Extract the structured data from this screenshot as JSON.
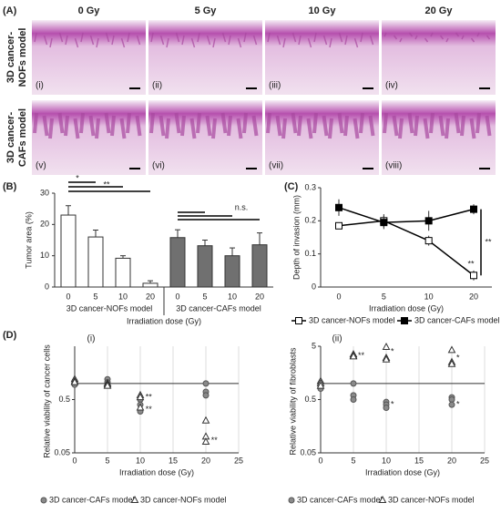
{
  "panel_a": {
    "label": "(A)",
    "columns": [
      "0 Gy",
      "5 Gy",
      "10 Gy",
      "20 Gy"
    ],
    "rows": [
      [
        "3D cancer-",
        "NOFs model"
      ],
      [
        "3D cancer-",
        "CAFs model"
      ]
    ],
    "image_labels": [
      "(i)",
      "(ii)",
      "(iii)",
      "(iv)",
      "(v)",
      "(vi)",
      "(vii)",
      "(viii)"
    ]
  },
  "panel_d_label": "(D)",
  "chart_data": [
    {
      "type": "bar",
      "panel": "(B)",
      "y_label": "Tumor area (%)",
      "x_label": "Irradiation dose (Gy)",
      "categories": [
        "0",
        "5",
        "10",
        "20"
      ],
      "series": [
        {
          "name": "3D cancer-NOFs model",
          "color": "#ffffff",
          "values": [
            23,
            16,
            9.2,
            1.2
          ],
          "errors": [
            3,
            2.2,
            0.8,
            0.8
          ]
        },
        {
          "name": "3D cancer-CAFs model",
          "color": "#707070",
          "values": [
            15.8,
            13.2,
            10,
            13.5
          ],
          "errors": [
            2.5,
            1.8,
            2.5,
            3.8
          ]
        }
      ],
      "ylim": [
        0,
        30
      ],
      "yticks": [
        0,
        10,
        20,
        30
      ],
      "annotations": [
        "*",
        "**",
        "n.s."
      ]
    },
    {
      "type": "line",
      "panel": "(C)",
      "y_label": "Depth of invasion (mm)",
      "x_label": "Irradiation dose (Gy)",
      "categories": [
        "0",
        "5",
        "10",
        "20"
      ],
      "series": [
        {
          "name": "3D cancer-NOFs model",
          "color": "#ffffff",
          "values": [
            0.185,
            0.2,
            0.14,
            0.035
          ],
          "errors": [
            0.01,
            0.02,
            0.015,
            0.015
          ]
        },
        {
          "name": "3D cancer-CAFs model",
          "color": "#000000",
          "values": [
            0.24,
            0.195,
            0.2,
            0.235
          ],
          "errors": [
            0.025,
            0.02,
            0.03,
            0.015
          ]
        }
      ],
      "ylim": [
        0,
        0.3
      ],
      "yticks": [
        0,
        0.1,
        0.2,
        0.3
      ],
      "annotations": [
        "**",
        "**"
      ]
    },
    {
      "type": "scatter",
      "title": "(i)",
      "y_label": "Relative viability of cancer cells",
      "x_label": "Irradiation dose (Gy)",
      "log_y": true,
      "grid": true,
      "reference_line": 1,
      "series": [
        {
          "name": "3D cancer-CAFs model",
          "marker": "circle",
          "color": "#8a8a8a",
          "x": [
            0,
            0,
            0,
            5,
            5,
            5,
            10,
            10,
            10,
            20,
            20,
            20
          ],
          "values": [
            1.0,
            1.1,
            0.95,
            1.2,
            1.05,
            0.95,
            0.5,
            0.4,
            0.3,
            1.0,
            0.7,
            0.6
          ]
        },
        {
          "name": "3D cancer-NOFs model",
          "marker": "triangle",
          "color": "#ffffff",
          "x": [
            0,
            0,
            0,
            5,
            5,
            5,
            10,
            10,
            10,
            20,
            20,
            20
          ],
          "values": [
            1.2,
            1.1,
            1.05,
            1.0,
            0.95,
            0.9,
            0.6,
            0.55,
            0.35,
            0.2,
            0.1,
            0.08
          ]
        }
      ],
      "xlim": [
        0,
        25
      ],
      "xticks": [
        0,
        5,
        10,
        15,
        20,
        25
      ],
      "ylim": [
        0.05,
        5
      ],
      "yticks": [
        0.05,
        0.5
      ],
      "annotations": [
        "**",
        "**",
        "**"
      ]
    },
    {
      "type": "scatter",
      "title": "(ii)",
      "y_label": "Relative viability of fibroblasts",
      "x_label": "Irradiation dose (Gy)",
      "log_y": true,
      "grid": true,
      "reference_line": 1,
      "series": [
        {
          "name": "3D cancer-CAFs model",
          "marker": "circle",
          "color": "#8a8a8a",
          "x": [
            0,
            0,
            0,
            5,
            5,
            5,
            10,
            10,
            10,
            20,
            20,
            20
          ],
          "values": [
            1.0,
            0.9,
            0.8,
            1.0,
            0.6,
            0.5,
            0.45,
            0.4,
            0.35,
            0.55,
            0.5,
            0.4
          ]
        },
        {
          "name": "3D cancer-NOFs model",
          "marker": "triangle",
          "color": "#ffffff",
          "x": [
            0,
            0,
            0,
            5,
            5,
            5,
            10,
            10,
            10,
            20,
            20,
            20
          ],
          "values": [
            1.1,
            1.0,
            0.9,
            3.5,
            3.3,
            3.2,
            4.8,
            3.0,
            2.8,
            4.2,
            2.5,
            2.3
          ]
        }
      ],
      "xlim": [
        0,
        25
      ],
      "xticks": [
        0,
        5,
        10,
        15,
        20,
        25
      ],
      "ylim": [
        0.05,
        5
      ],
      "yticks": [
        0.05,
        0.5,
        5
      ],
      "annotations": [
        "**",
        "*",
        "*",
        "*",
        "*"
      ]
    }
  ]
}
